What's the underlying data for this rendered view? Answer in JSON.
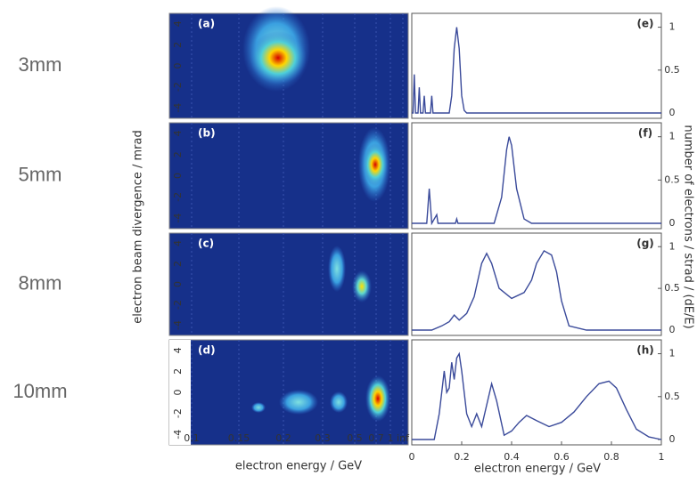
{
  "row_labels": [
    "3mm",
    "5mm",
    "8mm",
    "10mm"
  ],
  "left_axis": {
    "ylabel": "electron beam divergence / mrad",
    "xlabel": "electron energy / GeV",
    "xticks": [
      "0.1",
      "0.15",
      "0.2",
      "0.3",
      "0.5",
      "0.7",
      "1",
      "inf"
    ],
    "yticks": [
      4,
      2,
      0,
      -2,
      -4
    ],
    "ylim": [
      -5,
      5
    ]
  },
  "right_axis": {
    "ylabel": "number of electrons / strad / (dE/E)",
    "xlabel": "electron energy / GeV",
    "xticks": [
      0,
      0.2,
      0.4,
      0.6,
      0.8,
      1
    ]
  },
  "chart_data": [
    {
      "type": "heatmap",
      "panel": "(a)"
    },
    {
      "type": "heatmap",
      "panel": "(b)"
    },
    {
      "type": "heatmap",
      "panel": "(c)"
    },
    {
      "type": "heatmap",
      "panel": "(d)"
    },
    {
      "type": "line",
      "panel": "(e)",
      "xlim": [
        0,
        1
      ],
      "ylim": [
        0,
        1.12
      ],
      "yticks": [
        1,
        0.5,
        0
      ],
      "x": [
        0,
        0.005,
        0.01,
        0.015,
        0.025,
        0.03,
        0.035,
        0.045,
        0.05,
        0.055,
        0.075,
        0.08,
        0.085,
        0.15,
        0.16,
        0.17,
        0.18,
        0.19,
        0.2,
        0.21,
        0.22,
        1
      ],
      "series": [
        {
          "color": "#3a4a9a",
          "values": [
            0,
            0,
            0.45,
            0,
            0,
            0.3,
            0,
            0,
            0.2,
            0,
            0,
            0.2,
            0,
            0,
            0.2,
            0.75,
            1,
            0.75,
            0.2,
            0.03,
            0,
            0
          ]
        }
      ]
    },
    {
      "type": "line",
      "panel": "(f)",
      "xlim": [
        0,
        1
      ],
      "ylim": [
        0,
        1.12
      ],
      "yticks": [
        1,
        0.5,
        0
      ],
      "x": [
        0,
        0.06,
        0.07,
        0.08,
        0.1,
        0.105,
        0.11,
        0.175,
        0.18,
        0.185,
        0.33,
        0.36,
        0.38,
        0.39,
        0.4,
        0.42,
        0.45,
        0.48,
        1
      ],
      "series": [
        {
          "color": "#3a4a9a",
          "values": [
            0,
            0,
            0.4,
            0,
            0.1,
            0,
            0,
            0,
            0.05,
            0,
            0,
            0.3,
            0.85,
            1,
            0.9,
            0.4,
            0.05,
            0,
            0
          ]
        }
      ]
    },
    {
      "type": "line",
      "panel": "(g)",
      "xlim": [
        0,
        1
      ],
      "ylim": [
        0,
        1.12
      ],
      "yticks": [
        1,
        0.5,
        0
      ],
      "x": [
        0,
        0.08,
        0.12,
        0.15,
        0.17,
        0.19,
        0.22,
        0.25,
        0.28,
        0.3,
        0.32,
        0.35,
        0.4,
        0.45,
        0.48,
        0.5,
        0.53,
        0.56,
        0.58,
        0.6,
        0.63,
        0.7,
        1
      ],
      "series": [
        {
          "color": "#3a4a9a",
          "values": [
            0,
            0,
            0.05,
            0.1,
            0.18,
            0.12,
            0.2,
            0.4,
            0.8,
            0.92,
            0.8,
            0.5,
            0.38,
            0.45,
            0.6,
            0.8,
            0.95,
            0.9,
            0.7,
            0.35,
            0.05,
            0,
            0
          ]
        }
      ]
    },
    {
      "type": "line",
      "panel": "(h)",
      "xlim": [
        0,
        1
      ],
      "ylim": [
        0,
        1.12
      ],
      "yticks": [
        1,
        0.5,
        0
      ],
      "x": [
        0,
        0.09,
        0.11,
        0.13,
        0.14,
        0.15,
        0.16,
        0.17,
        0.18,
        0.19,
        0.2,
        0.22,
        0.24,
        0.26,
        0.28,
        0.3,
        0.32,
        0.34,
        0.37,
        0.4,
        0.43,
        0.46,
        0.5,
        0.55,
        0.6,
        0.65,
        0.7,
        0.75,
        0.79,
        0.82,
        0.86,
        0.9,
        0.95,
        1
      ],
      "series": [
        {
          "color": "#3a4a9a",
          "values": [
            0,
            0,
            0.3,
            0.8,
            0.55,
            0.6,
            0.9,
            0.7,
            0.95,
            1,
            0.8,
            0.3,
            0.15,
            0.3,
            0.15,
            0.4,
            0.65,
            0.45,
            0.05,
            0.1,
            0.2,
            0.28,
            0.22,
            0.15,
            0.2,
            0.32,
            0.5,
            0.65,
            0.68,
            0.6,
            0.35,
            0.12,
            0.03,
            0
          ]
        }
      ]
    }
  ]
}
